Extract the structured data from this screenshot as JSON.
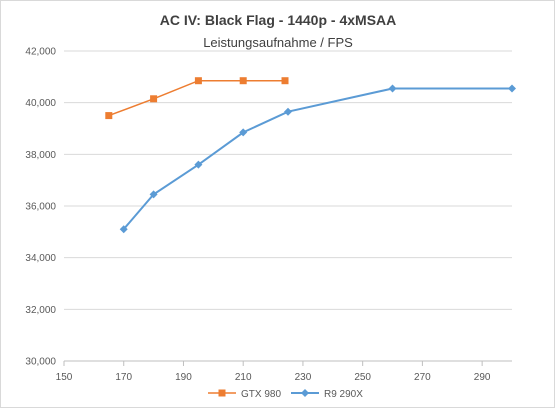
{
  "chart_data": {
    "type": "line",
    "title": "AC IV: Black Flag - 1440p - 4xMSAA",
    "subtitle": "Leistungsaufnahme / FPS",
    "xlabel": "",
    "ylabel": "",
    "xlim": [
      150,
      300
    ],
    "ylim": [
      30,
      42
    ],
    "x_ticks": [
      "150",
      "170",
      "190",
      "210",
      "230",
      "250",
      "270",
      "290"
    ],
    "y_ticks": [
      "30,000",
      "32,000",
      "34,000",
      "36,000",
      "38,000",
      "40,000",
      "42,000"
    ],
    "grid": "horizontal",
    "legend_position": "bottom",
    "series": [
      {
        "name": "GTX 980",
        "color": "#ed7d31",
        "marker": "square",
        "points": [
          [
            165,
            39.5
          ],
          [
            180,
            40.15
          ],
          [
            195,
            40.85
          ],
          [
            210,
            40.85
          ],
          [
            224,
            40.85
          ]
        ]
      },
      {
        "name": "R9 290X",
        "color": "#5b9bd5",
        "marker": "diamond",
        "points": [
          [
            170,
            35.1
          ],
          [
            180,
            36.45
          ],
          [
            195,
            37.6
          ],
          [
            210,
            38.85
          ],
          [
            225,
            39.65
          ],
          [
            260,
            40.55
          ],
          [
            300,
            40.55
          ]
        ]
      }
    ]
  }
}
